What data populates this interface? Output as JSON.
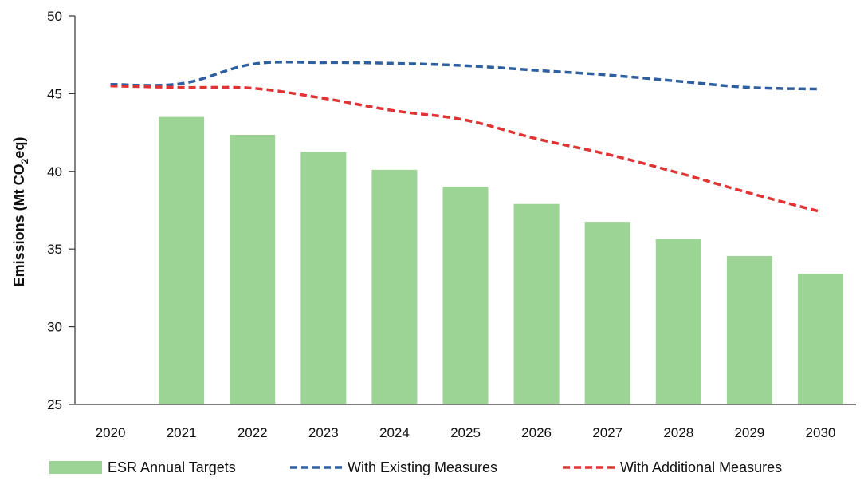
{
  "chart_data": {
    "type": "bar",
    "title": "",
    "xlabel": "",
    "ylabel": "Emissions (Mt CO",
    "ylabel_subscript": "2",
    "ylabel_suffix": "eq)",
    "categories": [
      "2020",
      "2021",
      "2022",
      "2023",
      "2024",
      "2025",
      "2026",
      "2027",
      "2028",
      "2029",
      "2030"
    ],
    "ylim": [
      25,
      50
    ],
    "yticks": [
      "25",
      "30",
      "35",
      "40",
      "45",
      "50"
    ],
    "grid": false,
    "legend_position": "bottom",
    "series": [
      {
        "name": "ESR Annual Targets",
        "kind": "bar",
        "color": "#9bd494",
        "values": [
          null,
          43.5,
          42.35,
          41.25,
          40.1,
          39.0,
          37.9,
          36.75,
          35.65,
          34.55,
          33.4
        ]
      },
      {
        "name": "With Existing Measures",
        "kind": "dashed-line",
        "color": "#2e5f9e",
        "values": [
          45.6,
          45.65,
          46.9,
          47.0,
          46.95,
          46.8,
          46.5,
          46.2,
          45.8,
          45.4,
          45.3
        ]
      },
      {
        "name": "With Additional Measures",
        "kind": "dashed-line",
        "color": "#e03434",
        "values": [
          45.5,
          45.4,
          45.35,
          44.7,
          43.9,
          43.3,
          42.1,
          41.1,
          39.9,
          38.6,
          37.4
        ]
      }
    ]
  }
}
